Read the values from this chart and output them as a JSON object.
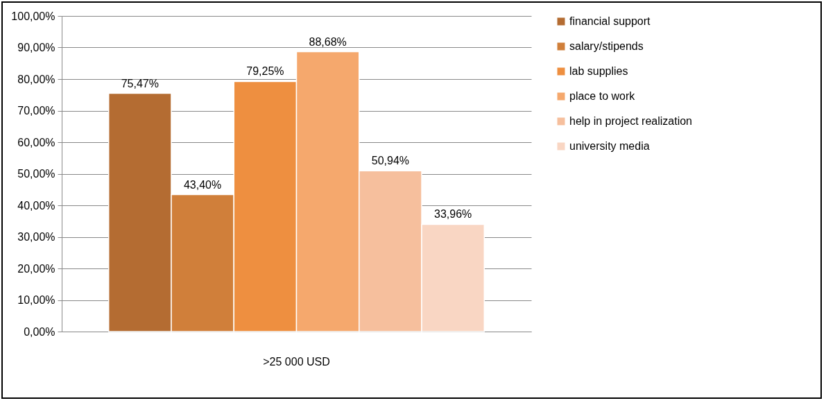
{
  "chart_data": {
    "type": "bar",
    "categories": [
      ">25 000 USD"
    ],
    "series": [
      {
        "name": "financial support",
        "color": "#b46c32",
        "values": [
          75.47
        ],
        "value_labels": [
          "75,47%"
        ]
      },
      {
        "name": "salary/stipends",
        "color": "#d07f3a",
        "values": [
          43.4
        ],
        "value_labels": [
          "43,40%"
        ]
      },
      {
        "name": "lab supplies",
        "color": "#ee8f40",
        "values": [
          79.25
        ],
        "value_labels": [
          "79,25%"
        ]
      },
      {
        "name": "place to work",
        "color": "#f5a86d",
        "values": [
          88.68
        ],
        "value_labels": [
          "88,68%"
        ]
      },
      {
        "name": "help in project realization",
        "color": "#f6bf9d",
        "values": [
          50.94
        ],
        "value_labels": [
          "50,94%"
        ]
      },
      {
        "name": "university media",
        "color": "#f9d6c3",
        "values": [
          33.96
        ],
        "value_labels": [
          "33,96%"
        ]
      }
    ],
    "ylim": [
      0,
      100
    ],
    "yticks": [
      {
        "value": 0,
        "label": "0,00%"
      },
      {
        "value": 10,
        "label": "10,00%"
      },
      {
        "value": 20,
        "label": "20,00%"
      },
      {
        "value": 30,
        "label": "30,00%"
      },
      {
        "value": 40,
        "label": "40,00%"
      },
      {
        "value": 50,
        "label": "50,00%"
      },
      {
        "value": 60,
        "label": "60,00%"
      },
      {
        "value": 70,
        "label": "70,00%"
      },
      {
        "value": 80,
        "label": "80,00%"
      },
      {
        "value": 90,
        "label": "90,00%"
      },
      {
        "value": 100,
        "label": "100,00%"
      }
    ],
    "grid": "y",
    "legend": "right"
  }
}
